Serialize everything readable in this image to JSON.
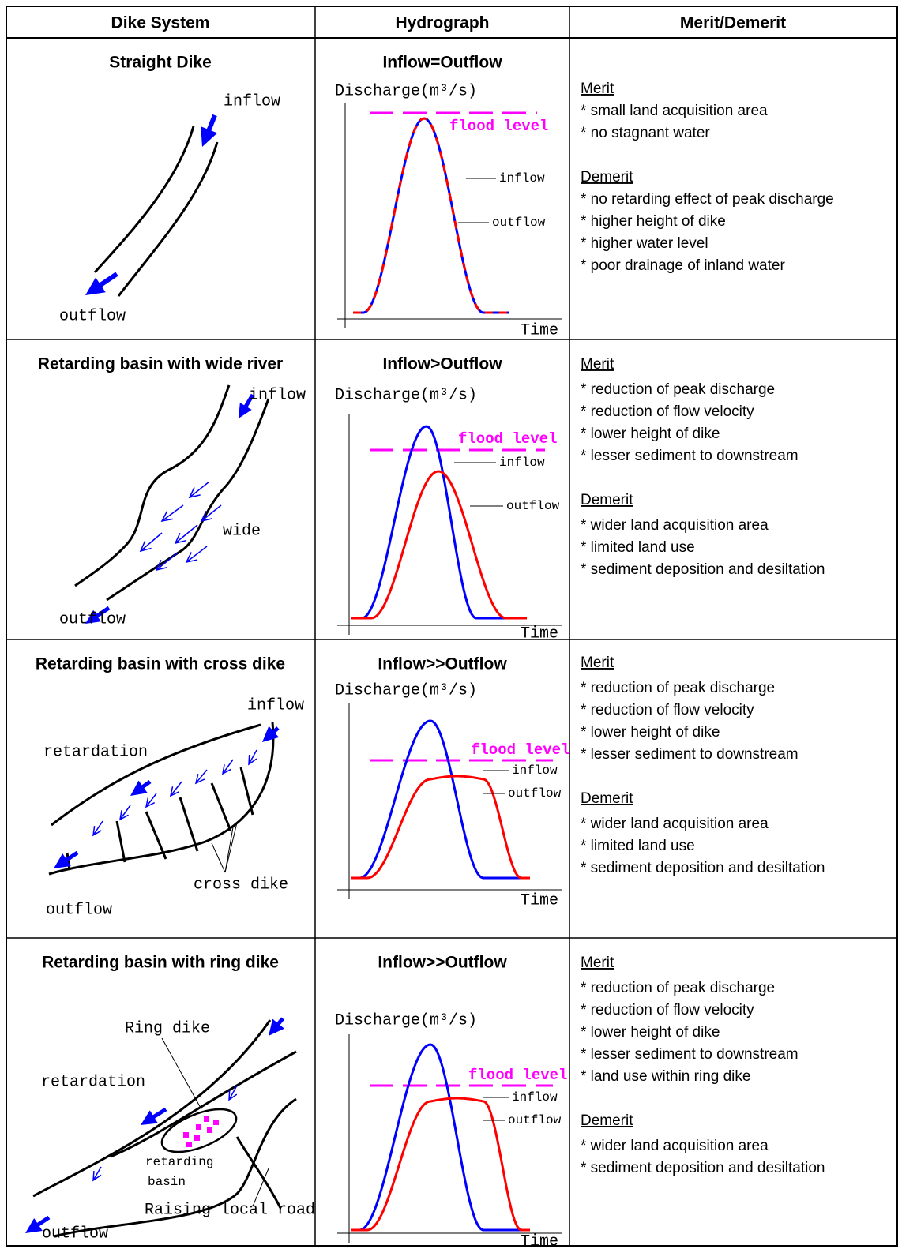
{
  "header": [
    "Dike System",
    "Hydrograph",
    "Merit/Demerit"
  ],
  "rows": [
    {
      "dike_system": {
        "title": "Straight Dike",
        "labels": [
          "inflow",
          "outflow"
        ]
      },
      "hydrograph": {
        "title": "Inflow=Outflow",
        "y_label": "Discharge(m³/s)",
        "x_label": "Time",
        "flood_label": "flood level",
        "inflow_label": "inflow",
        "outflow_label": "outflow"
      },
      "merit": {
        "heading": "Merit",
        "items": [
          "* small land acquisition area",
          "* no stagnant water"
        ]
      },
      "demerit": {
        "heading": "Demerit",
        "items": [
          "* no retarding effect of peak discharge",
          "* higher height of dike",
          "* higher water level",
          "* poor drainage of inland water"
        ]
      }
    },
    {
      "dike_system": {
        "title": "Retarding basin with wide river",
        "labels": [
          "inflow",
          "wide",
          "outflow"
        ]
      },
      "hydrograph": {
        "title": "Inflow>Outflow",
        "y_label": "Discharge(m³/s)",
        "x_label": "Time",
        "flood_label": "flood level",
        "inflow_label": "inflow",
        "outflow_label": "outflow"
      },
      "merit": {
        "heading": "Merit",
        "items": [
          "* reduction of peak discharge",
          "* reduction of flow velocity",
          "* lower height of dike",
          "* lesser sediment to downstream"
        ]
      },
      "demerit": {
        "heading": "Demerit",
        "items": [
          "* wider land acquisition area",
          "* limited land use",
          "* sediment deposition and desiltation"
        ]
      }
    },
    {
      "dike_system": {
        "title": "Retarding basin with cross dike",
        "labels": [
          "inflow",
          "retardation",
          "cross dike",
          "outflow"
        ]
      },
      "hydrograph": {
        "title": "Inflow>>Outflow",
        "y_label": "Discharge(m³/s)",
        "x_label": "Time",
        "flood_label": "flood level",
        "inflow_label": "inflow",
        "outflow_label": "outflow"
      },
      "merit": {
        "heading": "Merit",
        "items": [
          "* reduction of peak discharge",
          "* reduction of flow velocity",
          "* lower height of dike",
          "* lesser sediment to downstream"
        ]
      },
      "demerit": {
        "heading": "Demerit",
        "items": [
          "* wider land acquisition area",
          "* limited land use",
          "* sediment deposition and desiltation"
        ]
      }
    },
    {
      "dike_system": {
        "title": "Retarding basin with ring dike",
        "labels": [
          "Ring dike",
          "retardation",
          "retarding",
          "basin",
          "Raising local road",
          "outflow"
        ]
      },
      "hydrograph": {
        "title": "Inflow>>Outflow",
        "y_label": "Discharge(m³/s)",
        "x_label": "Time",
        "flood_label": "flood level",
        "inflow_label": "inflow",
        "outflow_label": "outflow"
      },
      "merit": {
        "heading": "Merit",
        "items": [
          "* reduction of peak discharge",
          "* reduction of flow velocity",
          "* lower height of dike",
          "* lesser sediment to downstream",
          "* land use within ring dike"
        ]
      },
      "demerit": {
        "heading": "Demerit",
        "items": [
          "* wider land acquisition area",
          "* sediment deposition and desiltation"
        ]
      }
    }
  ]
}
